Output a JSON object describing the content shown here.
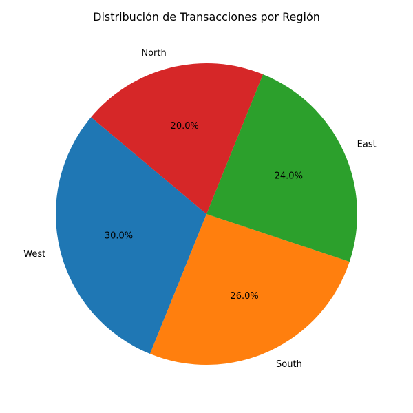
{
  "chart_data": {
    "type": "pie",
    "title": "Distribución de Transacciones por Región",
    "categories": [
      "West",
      "South",
      "East",
      "North"
    ],
    "values": [
      30.0,
      26.0,
      24.0,
      20.0
    ],
    "percent_labels": [
      "30.0%",
      "26.0%",
      "24.0%",
      "20.0%"
    ],
    "colors": [
      "#1f77b4",
      "#ff7f0e",
      "#2ca02c",
      "#d62728"
    ],
    "start_angle_deg": 140,
    "direction": "counterclockwise",
    "legend": "none"
  }
}
